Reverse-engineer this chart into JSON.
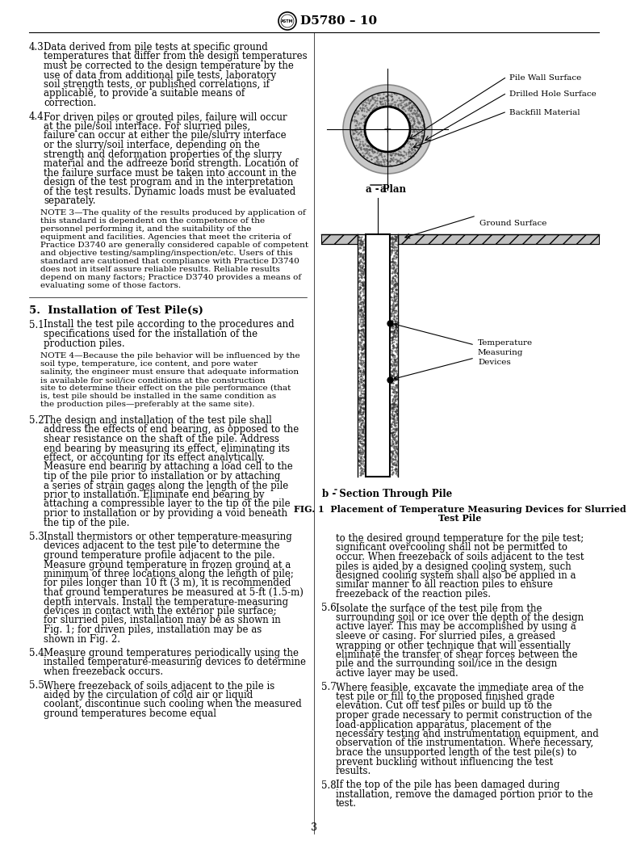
{
  "background_color": "#ffffff",
  "page_number": "3",
  "header_text": "D5780 – 10",
  "section_43_body": "Data derived from pile tests at specific ground temperatures that differ from the design temperatures must be corrected to the design temperature by the use of data from additional pile tests, laboratory soil strength tests, or published correlations, if applicable, to provide a suitable means of correction.",
  "section_44_body": "For driven piles or grouted piles, failure will occur at the pile/soil interface. For slurried piles, failure can occur at either the pile/slurry interface or the slurry/soil interface, depending on the strength and deformation properties of the slurry material and the adfreeze bond strength. Location of the failure surface must be taken into account in the design of the test program and in the interpretation of the test results. Dynamic loads must be evaluated separately.",
  "note3_body": "The quality of the results produced by application of this standard is dependent on the competence of the personnel performing it, and the suitability of the equipment and facilities. Agencies that meet the criteria of Practice D3740 are generally considered capable of competent and objective testing/sampling/inspection/etc. Users of this standard are cautioned that compliance with Practice D3740 does not in itself assure reliable results. Reliable results depend on many factors; Practice D3740 provides a means of evaluating some of those factors.",
  "section5_heading": "5.  Installation of Test Pile(s)",
  "section_51_body": "Install the test pile according to the procedures and specifications used for the installation of the production piles.",
  "note4_body": "Because the pile behavior will be influenced by the soil type, temperature, ice content, and pore water salinity, the engineer must ensure that adequate information is available for soil/ice conditions at the construction site to determine their effect on the pile performance (that is, test pile should be installed in the same condition as the production piles—preferably at the same site).",
  "section_52_body": "The design and installation of the test pile shall address the effects of end bearing, as opposed to the shear resistance on the shaft of the pile. Address end bearing by measuring its effect, eliminating its effect, or accounting for its effect analytically. Measure end bearing by attaching a load cell to the tip of the pile prior to installation or by attaching a series of strain gages along the length of the pile prior to installation. Eliminate end bearing by attaching a compressible layer to the tip of the pile prior to installation or by providing a void beneath the tip of the pile.",
  "section_53_body": "Install thermistors or other temperature-measuring devices adjacent to the test pile to determine the ground temperature profile adjacent to the pile. Measure ground temperature in frozen ground at a minimum of three locations along the length of pile; for piles longer than 10 ft (3 m), it is recommended that ground temperatures be measured at 5-ft (1.5-m) depth intervals. Install the temperature-measuring devices in contact with the exterior pile surface; for slurried piles, installation may be as shown in Fig. 1; for driven piles, installation may be as shown in Fig. 2.",
  "section_54_body": "Measure ground temperatures periodically using the installed temperature-measuring devices to determine when freezeback occurs.",
  "section_55_body": "Where freezeback of soils adjacent to the pile is aided by the circulation of cold air or liquid coolant, discontinue such cooling when the measured ground temperatures become equal",
  "right_col_para1": "to the desired ground temperature for the pile test; significant overcooling shall not be permitted to occur. When freezeback of soils adjacent to the test piles is aided by a designed cooling system, such designed cooling system shall also be applied in a similar manner to all reaction piles to ensure freezeback of the reaction piles.",
  "section_56_body": "Isolate the surface of the test pile from the surrounding soil or ice over the depth of the design active layer. This may be accomplished by using a sleeve or casing. For slurried piles, a greased wrapping or other technique that will essentially eliminate the transfer of shear forces between the pile and the surrounding soil/ice in the design active layer may be used.",
  "section_57_body": "Where feasible, excavate the immediate area of the test pile or fill to the proposed finished grade elevation. Cut off test piles or build up to the proper grade necessary to permit construction of the load-application apparatus, placement of the necessary testing and instrumentation equipment, and observation of the instrumentation. Where necessary, brace the unsupported length of the test pile(s) to prevent buckling without influencing the test results.",
  "section_58_body": "If the top of the pile has been damaged during installation, remove the damaged portion prior to the test.",
  "label_pile_wall": "Pile Wall Surface",
  "label_drilled_hole": "Drilled Hole Surface",
  "label_backfill": "Backfill Material",
  "label_ground_surface": "Ground Surface",
  "label_temp_devices_1": "Temperature",
  "label_temp_devices_2": "Measuring",
  "label_temp_devices_3": "Devices",
  "plan_label_a": "a",
  "plan_label_rest": " - Plan",
  "section_label_b": "b",
  "section_label_rest": " - Section Through Pile",
  "fig1_line1": "FIG. 1  Placement of Temperature Measuring Devices for Slurried",
  "fig1_line2": "Test Pile"
}
